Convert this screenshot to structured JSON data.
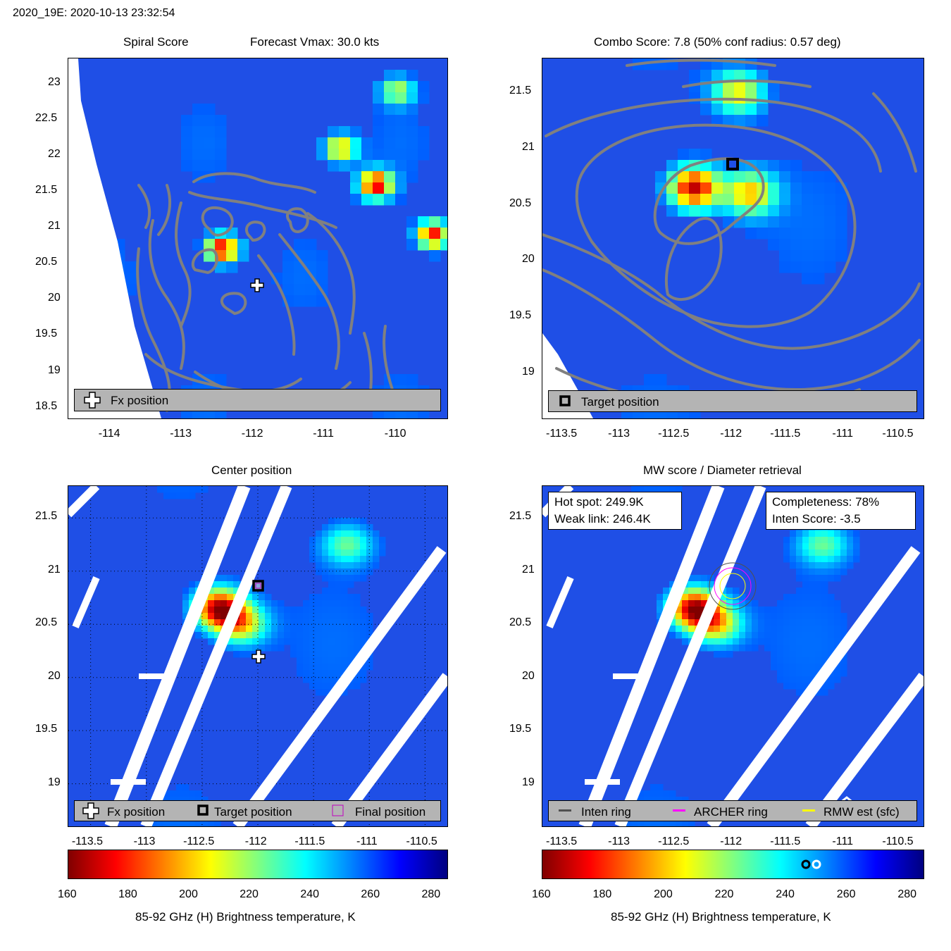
{
  "figure": {
    "suptitle": "2020_19E: 2020-10-13 23:32:54"
  },
  "panels": {
    "p1": {
      "title_left": "Spiral Score",
      "title_right": "Forecast Vmax: 30.0 kts",
      "legend": [
        "Fx position"
      ]
    },
    "p2": {
      "title": "Combo Score: 7.8  (50% conf radius: 0.57 deg)",
      "legend": [
        "Target position"
      ]
    },
    "p3": {
      "title": "Center position",
      "legend": [
        "Fx position",
        "Target position",
        "Final position"
      ]
    },
    "p4": {
      "title": "MW score / Diameter retrieval",
      "info_left": [
        "Hot spot: 249.9K",
        "Weak link: 246.4K"
      ],
      "info_right": [
        "Completeness: 78%",
        "Inten Score: -3.5"
      ],
      "legend": [
        "Inten ring",
        "ARCHER ring",
        "RMW est (sfc)"
      ]
    }
  },
  "colorbar": {
    "label": "85-92 GHz (H) Brightness temperature, K",
    "ticks": [
      "160",
      "180",
      "200",
      "220",
      "240",
      "260",
      "280"
    ],
    "range": [
      160,
      285
    ],
    "colormap": [
      "#800000",
      "#ff0000",
      "#ff8000",
      "#ffff00",
      "#80ff80",
      "#00ffff",
      "#0080ff",
      "#0000ff",
      "#000080"
    ]
  },
  "colors": {
    "fx_marker": "#ffffff",
    "contour": "#808080",
    "final_marker": "#c000c0",
    "inten_ring": "#505050",
    "archer_ring": "#ff00ff",
    "rmw_ring": "#ffff00",
    "legend_bg": "#b4b4b4"
  },
  "chart_data": [
    {
      "type": "heatmap",
      "title": "Spiral Score",
      "annotation": "Forecast Vmax: 30.0 kts",
      "xlim": [
        -114.6,
        -109.3
      ],
      "ylim": [
        18.35,
        23.35
      ],
      "xticks": [
        "-114",
        "-113",
        "-112",
        "-111",
        "-110"
      ],
      "yticks": [
        "18.5",
        "19",
        "19.5",
        "20",
        "20.5",
        "21",
        "21.5",
        "22",
        "22.5",
        "23"
      ],
      "markers": [
        {
          "label": "Fx position",
          "lon": -112.0,
          "lat": 20.2
        }
      ],
      "hot_spots_K": [
        {
          "lon": -112.45,
          "lat": 20.7,
          "tb": 165
        },
        {
          "lon": -110.8,
          "lat": 22.1,
          "tb": 195
        },
        {
          "lon": -110.3,
          "lat": 21.6,
          "tb": 170
        },
        {
          "lon": -109.5,
          "lat": 20.9,
          "tb": 175
        },
        {
          "lon": -110.0,
          "lat": 22.9,
          "tb": 215
        }
      ]
    },
    {
      "type": "heatmap",
      "title": "Combo Score: 7.8  (50% conf radius: 0.57 deg)",
      "xlim": [
        -113.7,
        -110.3
      ],
      "ylim": [
        18.6,
        21.8
      ],
      "xticks": [
        "-113.5",
        "-113",
        "-112.5",
        "-112",
        "-111.5",
        "-111",
        "-110.5"
      ],
      "yticks": [
        "19",
        "19.5",
        "20",
        "20.5",
        "21",
        "21.5"
      ],
      "markers": [
        {
          "label": "Target position",
          "lon": -112.0,
          "lat": 20.85
        }
      ],
      "hot_spots_K": [
        {
          "lon": -112.35,
          "lat": 20.65,
          "tb": 165
        },
        {
          "lon": -111.85,
          "lat": 20.6,
          "tb": 200
        },
        {
          "lon": -111.95,
          "lat": 21.5,
          "tb": 205
        }
      ]
    },
    {
      "type": "heatmap",
      "title": "Center position",
      "xlim": [
        -113.7,
        -110.3
      ],
      "ylim": [
        18.6,
        21.8
      ],
      "xticks": [
        "-113.5",
        "-113",
        "-112.5",
        "-112",
        "-111.5",
        "-111",
        "-110.5"
      ],
      "yticks": [
        "19",
        "19.5",
        "20",
        "20.5",
        "21",
        "21.5"
      ],
      "markers": [
        {
          "label": "Fx position",
          "lon": -112.0,
          "lat": 20.18
        },
        {
          "label": "Target position",
          "lon": -112.0,
          "lat": 20.85
        },
        {
          "label": "Final position",
          "lon": -112.0,
          "lat": 20.85
        }
      ],
      "hot_spots_K": [
        {
          "lon": -112.35,
          "lat": 20.65,
          "tb": 165
        },
        {
          "lon": -112.15,
          "lat": 20.5,
          "tb": 205
        },
        {
          "lon": -111.2,
          "lat": 21.25,
          "tb": 225
        }
      ]
    },
    {
      "type": "heatmap",
      "title": "MW score / Diameter retrieval",
      "xlim": [
        -113.7,
        -110.3
      ],
      "ylim": [
        18.6,
        21.8
      ],
      "xticks": [
        "-113.5",
        "-113",
        "-112.5",
        "-112",
        "-111.5",
        "-111",
        "-110.5"
      ],
      "yticks": [
        "19",
        "19.5",
        "20",
        "20.5",
        "21",
        "21.5"
      ],
      "hot_spot_K": 249.9,
      "weak_link_K": 246.4,
      "completeness_pct": 78,
      "inten_score": -3.5,
      "rings_center": {
        "lon": -112.0,
        "lat": 20.85
      },
      "hot_spots_K": [
        {
          "lon": -112.35,
          "lat": 20.65,
          "tb": 165
        },
        {
          "lon": -112.15,
          "lat": 20.5,
          "tb": 205
        },
        {
          "lon": -111.2,
          "lat": 21.25,
          "tb": 225
        }
      ]
    }
  ]
}
